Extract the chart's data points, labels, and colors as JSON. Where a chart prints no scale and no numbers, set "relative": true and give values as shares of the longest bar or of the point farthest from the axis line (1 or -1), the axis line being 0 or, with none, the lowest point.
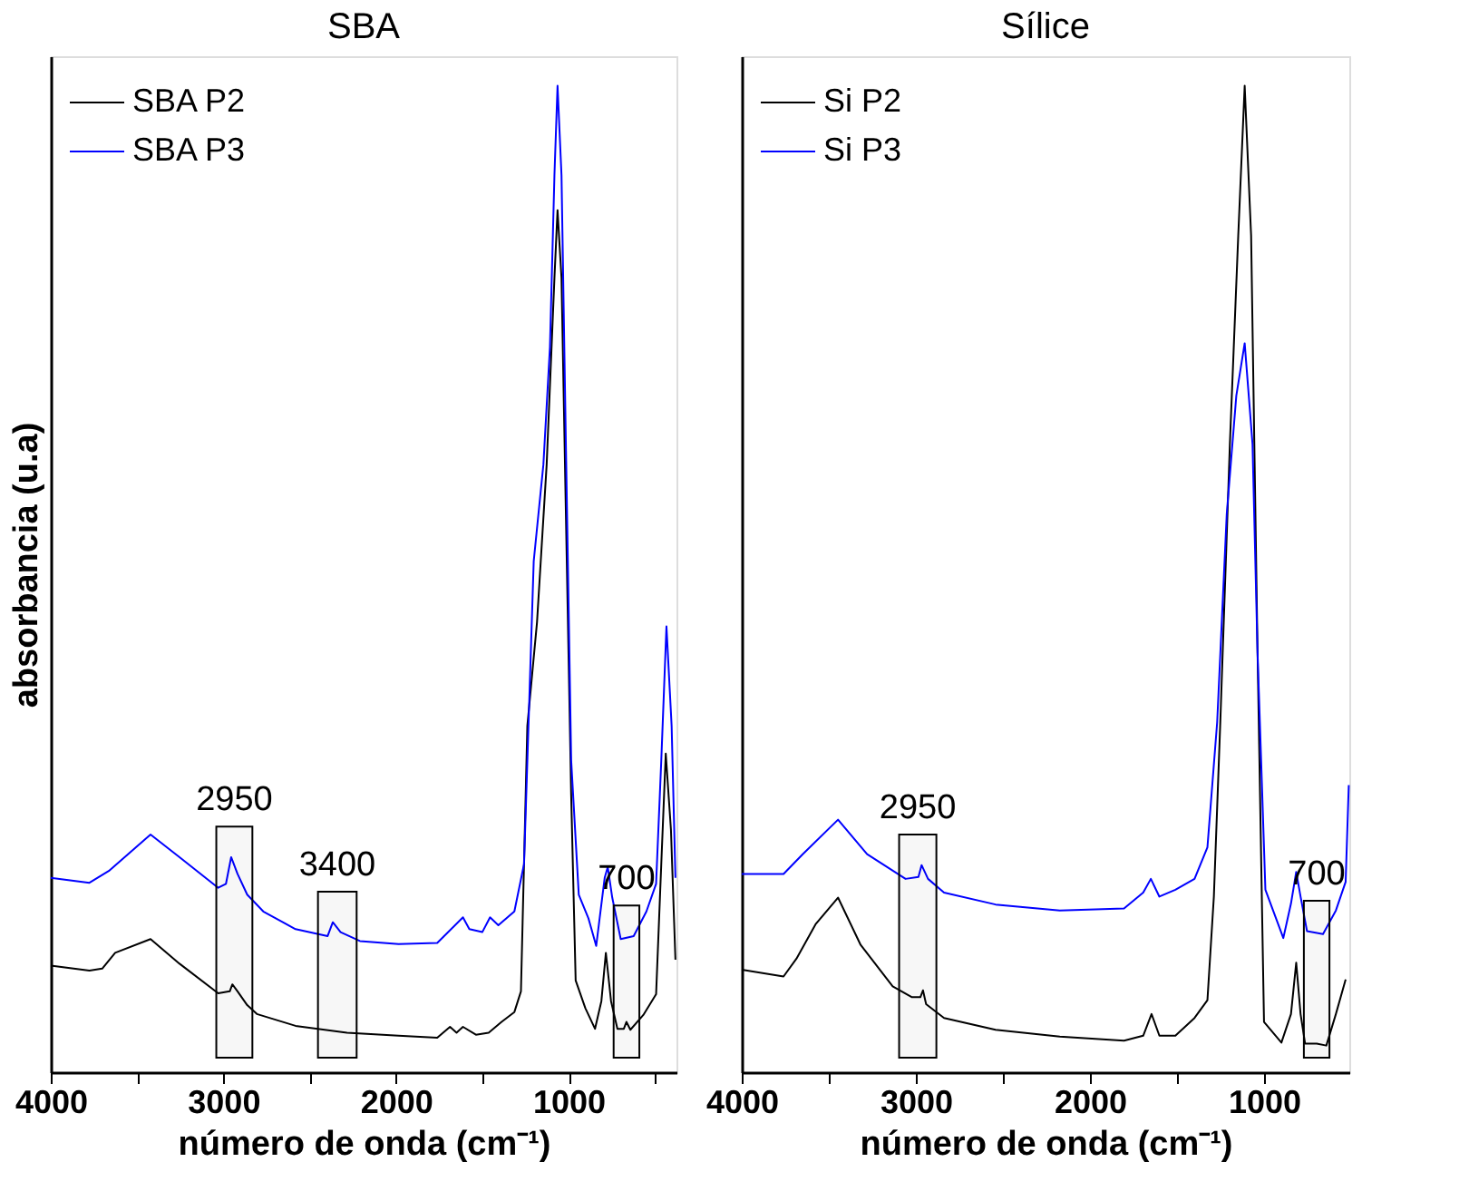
{
  "chart_data": [
    {
      "type": "line",
      "title": "SBA",
      "xlabel": "número de onda (cm⁻¹)",
      "ylabel": "absorbancia (u.a)",
      "relative": true,
      "legend": "top left",
      "grid": false,
      "xlim": [
        4000,
        375
      ],
      "xticks": [
        4000,
        {
          "value": 3500,
          "label": null
        },
        3000,
        {
          "value": 2500,
          "label": null
        },
        2000,
        {
          "value": 1500,
          "label": null
        },
        1000,
        {
          "value": 500,
          "label": null
        }
      ],
      "series": [
        {
          "name": "SBA P2",
          "color": "#000000",
          "x": [
            4000,
            3776,
            3702,
            3627,
            3422,
            3254,
            3030,
            2963,
            2948,
            2918,
            2862,
            2806,
            2582,
            2284,
            1985,
            1761,
            1687,
            1649,
            1612,
            1537,
            1463,
            1388,
            1314,
            1276,
            1239,
            1183,
            1127,
            1082,
            1064,
            1041,
            1015,
            985,
            959,
            903,
            847,
            810,
            784,
            754,
            717,
            680,
            665,
            642,
            567,
            493,
            463,
            437,
            407,
            381
          ],
          "values": [
            0.108,
            0.103,
            0.105,
            0.121,
            0.135,
            0.11,
            0.08,
            0.082,
            0.089,
            0.082,
            0.068,
            0.059,
            0.047,
            0.04,
            0.037,
            0.035,
            0.046,
            0.04,
            0.046,
            0.038,
            0.04,
            0.051,
            0.061,
            0.082,
            0.351,
            0.456,
            0.616,
            0.805,
            0.874,
            0.805,
            0.56,
            0.281,
            0.093,
            0.065,
            0.044,
            0.072,
            0.121,
            0.072,
            0.044,
            0.044,
            0.051,
            0.043,
            0.058,
            0.079,
            0.211,
            0.323,
            0.246,
            0.114
          ]
        },
        {
          "name": "SBA P3",
          "color": "#0000ff",
          "x": [
            4000,
            3776,
            3664,
            3422,
            3254,
            3030,
            2985,
            2955,
            2918,
            2862,
            2769,
            2582,
            2396,
            2366,
            2321,
            2209,
            1985,
            1761,
            1612,
            1575,
            1500,
            1455,
            1407,
            1314,
            1258,
            1202,
            1146,
            1108,
            1082,
            1064,
            1041,
            1015,
            985,
            941,
            885,
            840,
            791,
            773,
            747,
            698,
            623,
            549,
            493,
            463,
            433,
            403,
            381
          ],
          "values": [
            0.197,
            0.192,
            0.204,
            0.241,
            0.218,
            0.187,
            0.191,
            0.218,
            0.201,
            0.18,
            0.163,
            0.145,
            0.138,
            0.152,
            0.142,
            0.133,
            0.13,
            0.131,
            0.157,
            0.145,
            0.142,
            0.157,
            0.149,
            0.163,
            0.211,
            0.518,
            0.616,
            0.735,
            0.909,
            1.0,
            0.909,
            0.63,
            0.316,
            0.18,
            0.156,
            0.128,
            0.197,
            0.208,
            0.177,
            0.135,
            0.138,
            0.163,
            0.191,
            0.316,
            0.452,
            0.351,
            0.197
          ]
        }
      ],
      "bands": [
        {
          "axis": "x",
          "from": 3041,
          "to": 2832,
          "label": "2950",
          "color": "#000000"
        },
        {
          "axis": "x",
          "from": 2452,
          "to": 2228,
          "label": "3400",
          "color": "#000000"
        },
        {
          "axis": "x",
          "from": 739,
          "to": 590,
          "label": "700",
          "color": "#000000"
        }
      ]
    },
    {
      "type": "line",
      "title": "Sílice",
      "xlabel": "número de onda (cm⁻¹)",
      "relative": true,
      "legend": "top left",
      "grid": false,
      "xlim": [
        4000,
        510
      ],
      "xticks": [
        4000,
        {
          "value": 3500,
          "label": null
        },
        3000,
        {
          "value": 2500,
          "label": null
        },
        2000,
        {
          "value": 1500,
          "label": null
        },
        1000
      ],
      "series": [
        {
          "name": "Si P2",
          "color": "#000000",
          "x": [
            4000,
            3760,
            3686,
            3576,
            3447,
            3317,
            3133,
            3022,
            2974,
            2959,
            2941,
            2838,
            2542,
            2173,
            1804,
            1694,
            1646,
            1601,
            1509,
            1399,
            1325,
            1288,
            1251,
            1196,
            1148,
            1111,
            1074,
            1037,
            1000,
            900,
            845,
            815,
            790,
            764,
            697,
            642,
            587,
            531
          ],
          "values": [
            0.104,
            0.097,
            0.115,
            0.15,
            0.177,
            0.129,
            0.087,
            0.076,
            0.076,
            0.083,
            0.069,
            0.055,
            0.043,
            0.036,
            0.032,
            0.037,
            0.059,
            0.037,
            0.037,
            0.055,
            0.073,
            0.178,
            0.355,
            0.637,
            0.848,
            1.0,
            0.848,
            0.425,
            0.051,
            0.03,
            0.059,
            0.111,
            0.059,
            0.029,
            0.029,
            0.027,
            0.059,
            0.094
          ]
        },
        {
          "name": "Si P3",
          "color": "#0000ff",
          "x": [
            4000,
            3760,
            3650,
            3447,
            3280,
            3059,
            2985,
            2967,
            2930,
            2838,
            2542,
            2173,
            1804,
            1694,
            1650,
            1601,
            1509,
            1399,
            1325,
            1269,
            1214,
            1159,
            1111,
            1066,
            1037,
            992,
            889,
            845,
            815,
            790,
            753,
            661,
            587,
            531,
            513
          ],
          "values": [
            0.201,
            0.201,
            0.221,
            0.256,
            0.221,
            0.196,
            0.198,
            0.21,
            0.196,
            0.182,
            0.17,
            0.164,
            0.166,
            0.182,
            0.196,
            0.178,
            0.185,
            0.196,
            0.228,
            0.355,
            0.566,
            0.686,
            0.739,
            0.637,
            0.425,
            0.185,
            0.136,
            0.171,
            0.203,
            0.178,
            0.143,
            0.14,
            0.164,
            0.193,
            0.291
          ]
        }
      ],
      "bands": [
        {
          "axis": "x",
          "from": 3096,
          "to": 2882,
          "label": "2950",
          "color": "#000000"
        },
        {
          "axis": "x",
          "from": 771,
          "to": 624,
          "label": "700",
          "color": "#000000"
        }
      ]
    }
  ]
}
